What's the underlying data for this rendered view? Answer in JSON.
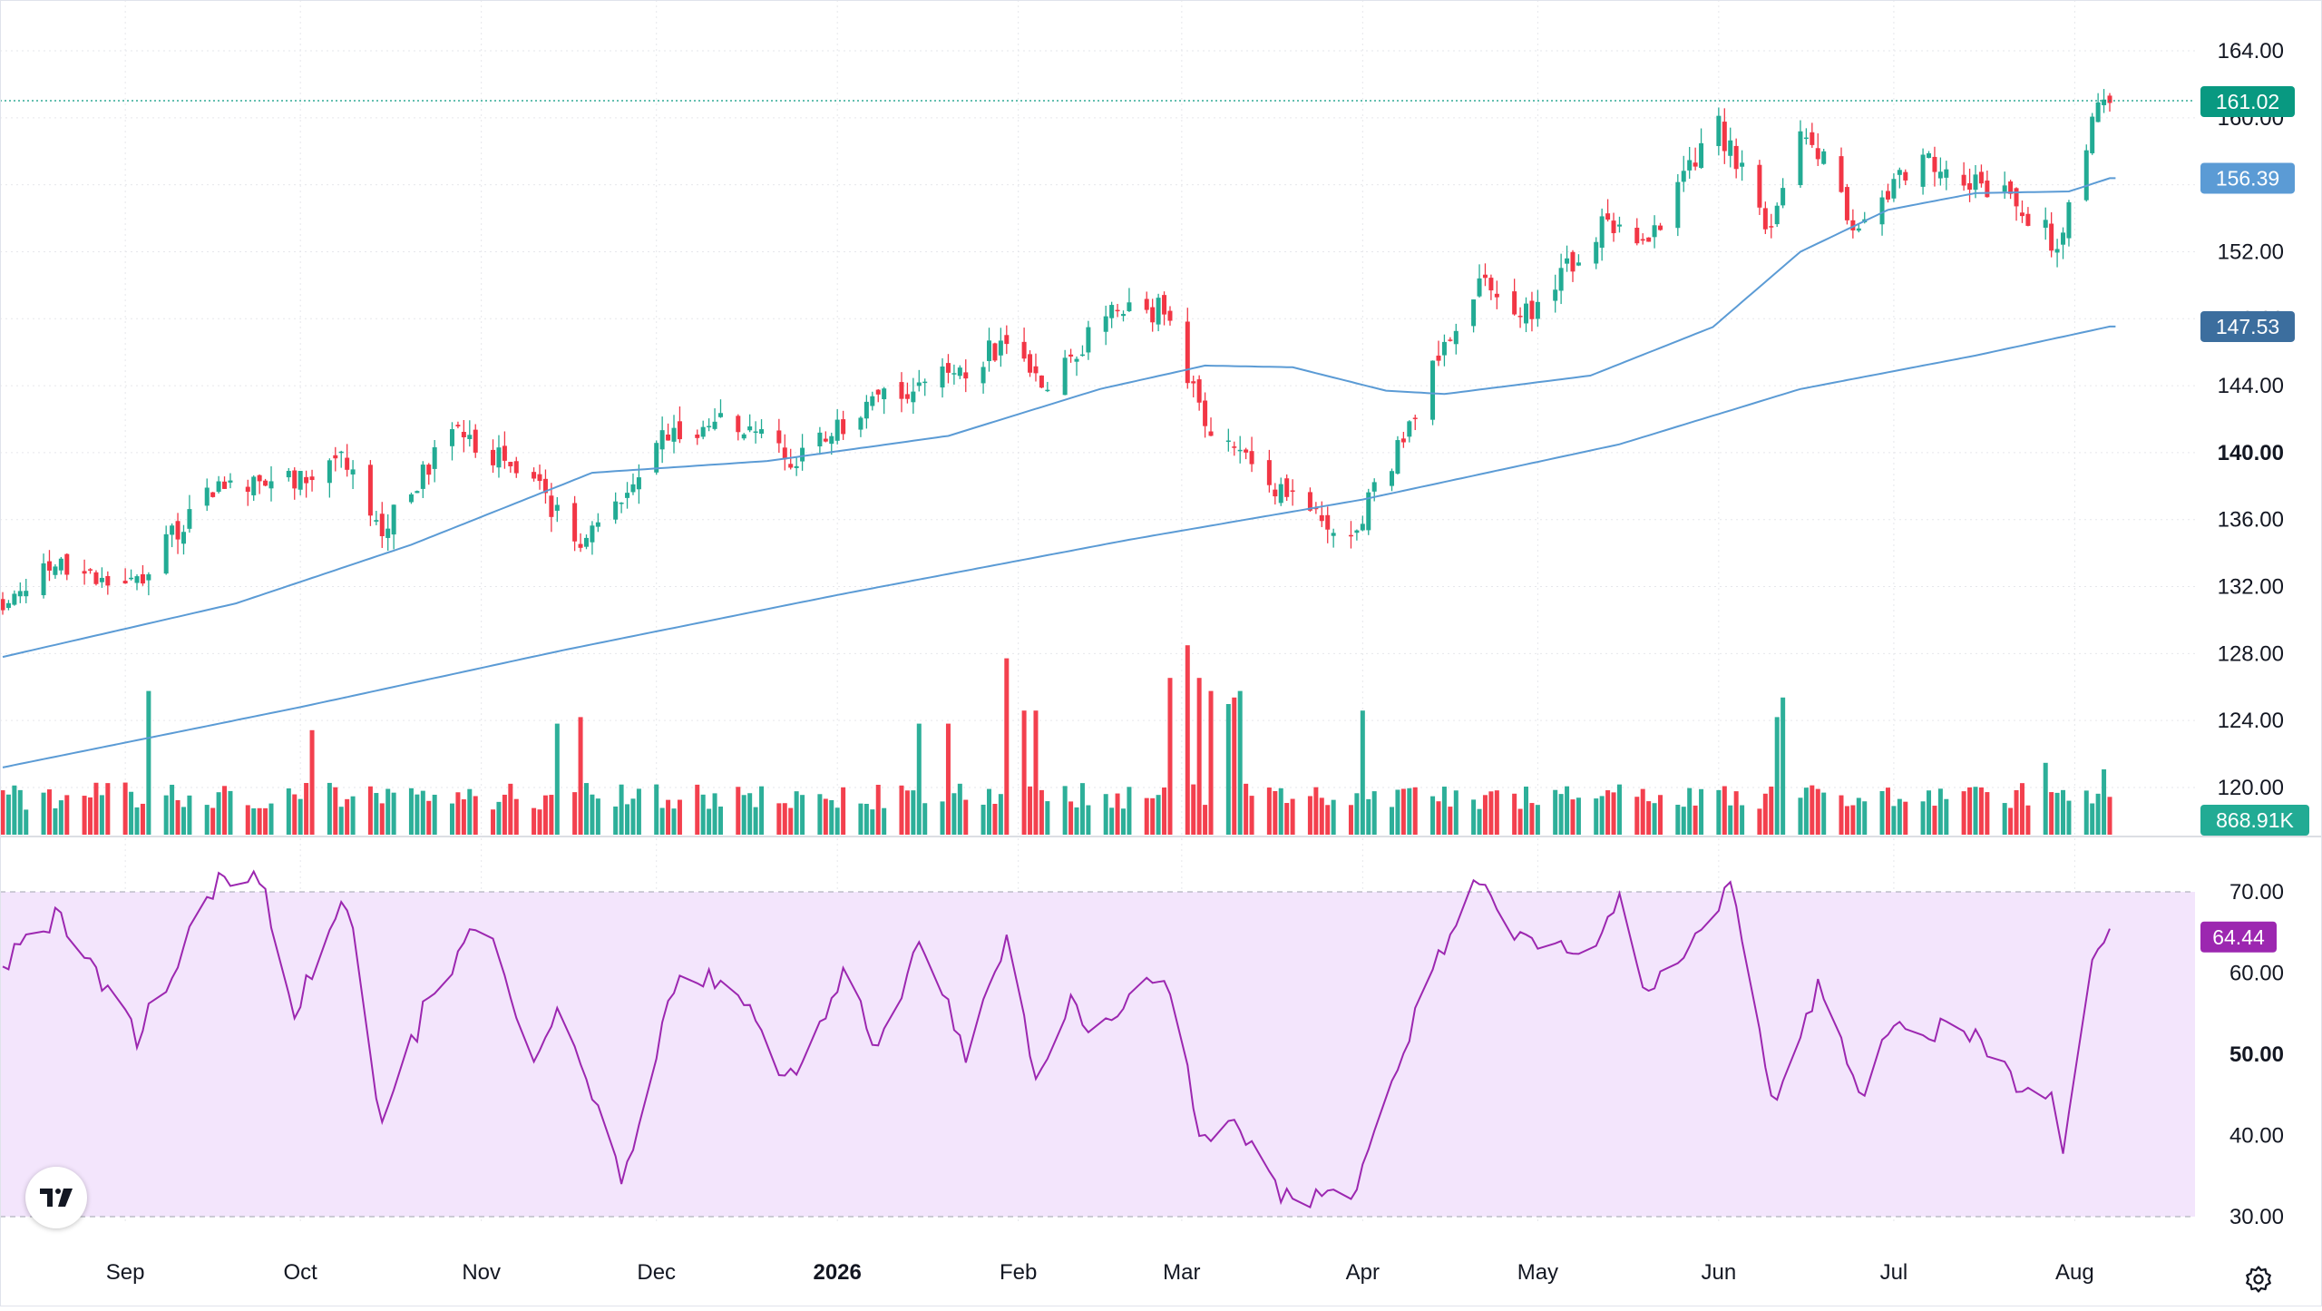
{
  "chart_data": {
    "type": "candlestick",
    "x_axis": {
      "month_labels": [
        "Sep",
        "Oct",
        "Nov",
        "Dec",
        "2026",
        "Feb",
        "Mar",
        "Apr",
        "May",
        "Jun",
        "Jul",
        "Aug"
      ],
      "start": "2025-08-11",
      "end": "2026-08-08"
    },
    "price_axis": {
      "ticks": [
        "164.00",
        "160.00",
        "156.00",
        "152.00",
        "148.00",
        "144.00",
        "140.00",
        "136.00",
        "132.00",
        "128.00",
        "124.00",
        "120.00"
      ],
      "range": [
        117.0,
        166.0
      ]
    },
    "price_anchors": [
      [
        "2025-08-11",
        131.0
      ],
      [
        "2025-08-20",
        133.5
      ],
      [
        "2025-09-02",
        132.0
      ],
      [
        "2025-09-15",
        137.5
      ],
      [
        "2025-09-26",
        138.0
      ],
      [
        "2025-10-08",
        139.5
      ],
      [
        "2025-10-15",
        135.5
      ],
      [
        "2025-10-28",
        141.5
      ],
      [
        "2025-11-10",
        138.0
      ],
      [
        "2025-11-19",
        134.5
      ],
      [
        "2025-12-01",
        140.5
      ],
      [
        "2025-12-15",
        142.0
      ],
      [
        "2025-12-23",
        139.5
      ],
      [
        "2026-01-08",
        143.0
      ],
      [
        "2026-01-20",
        144.5
      ],
      [
        "2026-01-29",
        146.5
      ],
      [
        "2026-02-05",
        144.0
      ],
      [
        "2026-02-18",
        148.5
      ],
      [
        "2026-02-26",
        148.5
      ],
      [
        "2026-03-05",
        142.0
      ],
      [
        "2026-03-12",
        140.0
      ],
      [
        "2026-03-23",
        136.0
      ],
      [
        "2026-03-31",
        135.5
      ],
      [
        "2026-04-06",
        139.5
      ],
      [
        "2026-04-14",
        145.5
      ],
      [
        "2026-04-21",
        150.0
      ],
      [
        "2026-04-30",
        148.5
      ],
      [
        "2026-05-12",
        153.5
      ],
      [
        "2026-05-20",
        153.0
      ],
      [
        "2026-06-01",
        159.5
      ],
      [
        "2026-06-10",
        153.0
      ],
      [
        "2026-06-16",
        159.5
      ],
      [
        "2026-06-24",
        153.5
      ],
      [
        "2026-07-06",
        157.5
      ],
      [
        "2026-07-14",
        156.5
      ],
      [
        "2026-07-21",
        155.0
      ],
      [
        "2026-07-29",
        152.5
      ],
      [
        "2026-08-04",
        159.5
      ],
      [
        "2026-08-06",
        161.5
      ],
      [
        "2026-08-07",
        161.0
      ]
    ],
    "ma_fast": {
      "color": "#5b9bd5",
      "anchors": [
        [
          "2025-08-11",
          127.8
        ],
        [
          "2025-09-20",
          131.0
        ],
        [
          "2025-10-20",
          134.5
        ],
        [
          "2025-11-20",
          138.8
        ],
        [
          "2025-12-20",
          139.5
        ],
        [
          "2026-01-20",
          141.0
        ],
        [
          "2026-02-15",
          143.8
        ],
        [
          "2026-03-05",
          145.2
        ],
        [
          "2026-03-20",
          145.1
        ],
        [
          "2026-04-05",
          143.7
        ],
        [
          "2026-04-15",
          143.5
        ],
        [
          "2026-05-10",
          144.6
        ],
        [
          "2026-05-31",
          147.5
        ],
        [
          "2026-06-15",
          152.0
        ],
        [
          "2026-06-30",
          154.5
        ],
        [
          "2026-07-15",
          155.5
        ],
        [
          "2026-07-31",
          155.6
        ],
        [
          "2026-08-07",
          156.39
        ]
      ]
    },
    "ma_slow": {
      "color": "#5b9bd5",
      "anchors": [
        [
          "2025-08-11",
          121.2
        ],
        [
          "2025-10-01",
          124.8
        ],
        [
          "2025-11-15",
          128.2
        ],
        [
          "2026-01-01",
          131.5
        ],
        [
          "2026-02-20",
          134.8
        ],
        [
          "2026-04-01",
          137.2
        ],
        [
          "2026-05-15",
          140.5
        ],
        [
          "2026-06-15",
          143.8
        ],
        [
          "2026-07-15",
          145.8
        ],
        [
          "2026-08-07",
          147.53
        ]
      ]
    },
    "volume": {
      "seed": 17,
      "spikes": [
        [
          "2025-09-05",
          2.2
        ],
        [
          "2025-10-03",
          1.6
        ],
        [
          "2025-11-14",
          1.7
        ],
        [
          "2025-11-18",
          1.8
        ],
        [
          "2026-01-15",
          1.7
        ],
        [
          "2026-01-20",
          1.7
        ],
        [
          "2026-01-30",
          2.7
        ],
        [
          "2026-02-02",
          1.9
        ],
        [
          "2026-02-04",
          1.9
        ],
        [
          "2026-02-27",
          2.4
        ],
        [
          "2026-03-02",
          2.9
        ],
        [
          "2026-03-04",
          2.4
        ],
        [
          "2026-03-06",
          2.2
        ],
        [
          "2026-03-09",
          2.0
        ],
        [
          "2026-03-10",
          2.1
        ],
        [
          "2026-03-11",
          2.2
        ],
        [
          "2026-04-01",
          1.9
        ],
        [
          "2026-06-11",
          1.8
        ],
        [
          "2026-06-12",
          2.1
        ],
        [
          "2026-07-27",
          1.1
        ],
        [
          "2026-08-06",
          1.0
        ]
      ]
    },
    "rsi": {
      "ticks": [
        "70.00",
        "60.00",
        "50.00",
        "40.00",
        "30.00"
      ],
      "range": [
        28,
        73
      ],
      "overbought": 70,
      "oversold": 30,
      "color": "#9c27b0",
      "anchors": [
        [
          "2025-08-11",
          61
        ],
        [
          "2025-08-20",
          67
        ],
        [
          "2025-08-28",
          59
        ],
        [
          "2025-09-03",
          52
        ],
        [
          "2025-09-10",
          62
        ],
        [
          "2025-09-17",
          72
        ],
        [
          "2025-09-24",
          72
        ],
        [
          "2025-09-30",
          55
        ],
        [
          "2025-10-08",
          70
        ],
        [
          "2025-10-10",
          65
        ],
        [
          "2025-10-15",
          41
        ],
        [
          "2025-10-22",
          55
        ],
        [
          "2025-11-01",
          67
        ],
        [
          "2025-11-10",
          48
        ],
        [
          "2025-11-15",
          57
        ],
        [
          "2025-11-25",
          34
        ],
        [
          "2025-12-05",
          61
        ],
        [
          "2025-12-15",
          58
        ],
        [
          "2025-12-23",
          46
        ],
        [
          "2026-01-02",
          60
        ],
        [
          "2026-01-08",
          51
        ],
        [
          "2026-01-15",
          63
        ],
        [
          "2026-01-20",
          57
        ],
        [
          "2026-01-23",
          48
        ],
        [
          "2026-01-30",
          65
        ],
        [
          "2026-02-04",
          47
        ],
        [
          "2026-02-10",
          56
        ],
        [
          "2026-02-15",
          53
        ],
        [
          "2026-02-22",
          60
        ],
        [
          "2026-02-28",
          57
        ],
        [
          "2026-03-04",
          39
        ],
        [
          "2026-03-10",
          42
        ],
        [
          "2026-03-20",
          31
        ],
        [
          "2026-03-26",
          33
        ],
        [
          "2026-03-31",
          33
        ],
        [
          "2026-04-07",
          49
        ],
        [
          "2026-04-14",
          62
        ],
        [
          "2026-04-20",
          72
        ],
        [
          "2026-04-26",
          65
        ],
        [
          "2026-05-10",
          62
        ],
        [
          "2026-05-15",
          69
        ],
        [
          "2026-05-20",
          57
        ],
        [
          "2026-05-31",
          68
        ],
        [
          "2026-06-03",
          71
        ],
        [
          "2026-06-10",
          44
        ],
        [
          "2026-06-18",
          58
        ],
        [
          "2026-06-25",
          45
        ],
        [
          "2026-07-01",
          53
        ],
        [
          "2026-07-10",
          53
        ],
        [
          "2026-07-17",
          51
        ],
        [
          "2026-07-23",
          46
        ],
        [
          "2026-07-28",
          46
        ],
        [
          "2026-07-30",
          39
        ],
        [
          "2026-08-03",
          58
        ],
        [
          "2026-08-05",
          64
        ],
        [
          "2026-08-07",
          64.44
        ]
      ]
    },
    "last_price": "161.02",
    "label_badges": [
      {
        "text": "161.02",
        "price": 161.02,
        "color": "#089981"
      },
      {
        "text": "156.39",
        "price": 156.39,
        "color": "#5b9bd5"
      },
      {
        "text": "147.53",
        "price": 147.53,
        "color": "#3c6e9e"
      }
    ],
    "volume_badge": {
      "text": "868.91K",
      "color": "#22ab94"
    },
    "rsi_badge": {
      "text": "64.44",
      "color": "#9c27b0"
    },
    "colors": {
      "up": "#22ab94",
      "down": "#f23645",
      "grid": "#e6e7eb",
      "rsi_band": "#f3e5fc"
    }
  },
  "icons": {
    "logo": "tradingview-logo-icon",
    "settings": "settings-gear-icon"
  }
}
